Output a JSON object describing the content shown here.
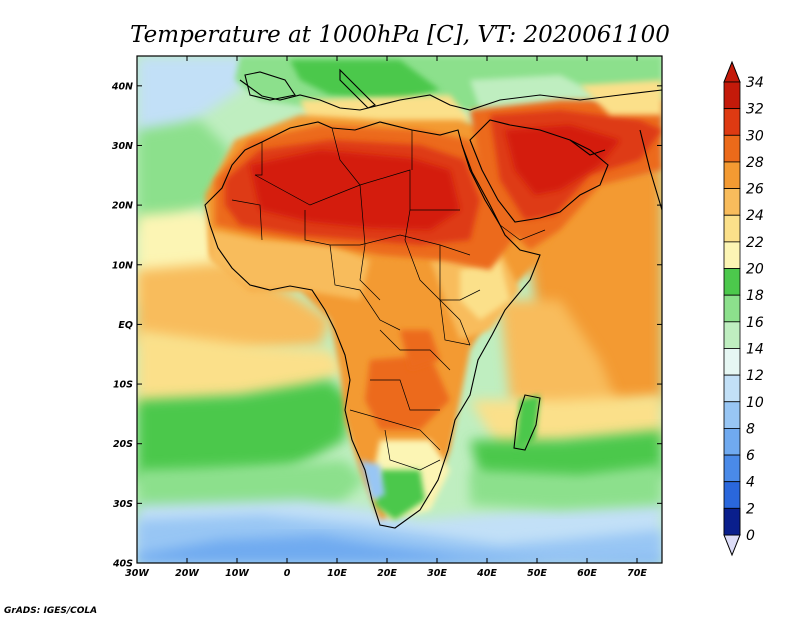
{
  "title": "Temperature at 1000hPa [C], VT: 2020061100",
  "credit": "GrADS: IGES/COLA",
  "map": {
    "projection": "latlon",
    "lon_range": [
      -30,
      75
    ],
    "lat_range": [
      -40,
      45
    ],
    "lon_ticks": [
      {
        "value": -30,
        "label": "30W"
      },
      {
        "value": -20,
        "label": "20W"
      },
      {
        "value": -10,
        "label": "10W"
      },
      {
        "value": 0,
        "label": "0"
      },
      {
        "value": 10,
        "label": "10E"
      },
      {
        "value": 20,
        "label": "20E"
      },
      {
        "value": 30,
        "label": "30E"
      },
      {
        "value": 40,
        "label": "40E"
      },
      {
        "value": 50,
        "label": "50E"
      },
      {
        "value": 60,
        "label": "60E"
      },
      {
        "value": 70,
        "label": "70E"
      }
    ],
    "lat_ticks": [
      {
        "value": 40,
        "label": "40N"
      },
      {
        "value": 30,
        "label": "30N"
      },
      {
        "value": 20,
        "label": "20N"
      },
      {
        "value": 10,
        "label": "10N"
      },
      {
        "value": 0,
        "label": "EQ"
      },
      {
        "value": -10,
        "label": "10S"
      },
      {
        "value": -20,
        "label": "20S"
      },
      {
        "value": -30,
        "label": "30S"
      },
      {
        "value": -40,
        "label": "40S"
      }
    ]
  },
  "colorbar": {
    "levels": [
      0,
      2,
      4,
      6,
      8,
      10,
      12,
      14,
      16,
      18,
      20,
      22,
      24,
      26,
      28,
      30,
      32,
      34
    ],
    "colors": [
      "#0a1f8c",
      "#1446c8",
      "#2a67dc",
      "#4a8ae8",
      "#70aaf0",
      "#98c6f4",
      "#c2e0f7",
      "#e6f7f3",
      "#bfeec0",
      "#8ce08c",
      "#4cc84c",
      "#fcf5b4",
      "#fbe08a",
      "#f8bc5c",
      "#f39a32",
      "#ec6a1a",
      "#de3a12",
      "#c41a0a"
    ],
    "under_color": "#ddddf8",
    "over_color": "#c41a0a"
  },
  "field_colors": {
    "t14": "#98c6f4",
    "t16": "#c2e0f7",
    "t18": "#bfeec0",
    "t20": "#8ce08c",
    "t21": "#4cc84c",
    "t22": "#fcf5b4",
    "t24": "#fbe08a",
    "t26": "#f8bc5c",
    "t28": "#f39a32",
    "t30": "#ec6a1a",
    "t32": "#de3a12",
    "t34": "#d41e0c",
    "t10": "#70aaf0",
    "t12": "#8cbcf2"
  }
}
